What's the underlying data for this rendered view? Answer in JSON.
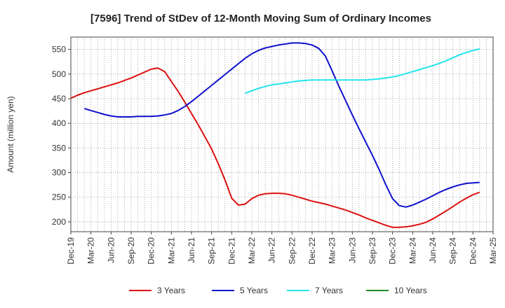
{
  "chart_data": {
    "type": "line",
    "title": "[7596]  Trend of StDev of 12-Month Moving Sum of Ordinary Incomes",
    "xlabel": "",
    "ylabel": "Amount (million yen)",
    "ylim": [
      180,
      575
    ],
    "yticks": [
      200,
      250,
      300,
      350,
      400,
      450,
      500,
      550
    ],
    "x_tick_labels": [
      "Dec-19",
      "Mar-20",
      "Jun-20",
      "Sep-20",
      "Dec-20",
      "Mar-21",
      "Jun-21",
      "Sep-21",
      "Dec-21",
      "Mar-22",
      "Jun-22",
      "Sep-22",
      "Dec-22",
      "Mar-23",
      "Jun-23",
      "Sep-23",
      "Dec-23",
      "Mar-24",
      "Jun-24",
      "Sep-24",
      "Dec-24",
      "Mar-25"
    ],
    "grid": true,
    "legend_position": "bottom",
    "series": [
      {
        "name": "3 Years",
        "color": "#dd1111",
        "points": [
          [
            "2019-12",
            451
          ],
          [
            "2020-01",
            457
          ],
          [
            "2020-02",
            462
          ],
          [
            "2020-03",
            466
          ],
          [
            "2020-04",
            470
          ],
          [
            "2020-05",
            474
          ],
          [
            "2020-06",
            478
          ],
          [
            "2020-07",
            482
          ],
          [
            "2020-08",
            487
          ],
          [
            "2020-09",
            492
          ],
          [
            "2020-10",
            498
          ],
          [
            "2020-11",
            504
          ],
          [
            "2020-12",
            510
          ],
          [
            "2021-01",
            512
          ],
          [
            "2021-02",
            505
          ],
          [
            "2021-03",
            485
          ],
          [
            "2021-04",
            465
          ],
          [
            "2021-05",
            443
          ],
          [
            "2021-06",
            420
          ],
          [
            "2021-07",
            397
          ],
          [
            "2021-08",
            373
          ],
          [
            "2021-09",
            348
          ],
          [
            "2021-10",
            318
          ],
          [
            "2021-11",
            285
          ],
          [
            "2021-12",
            248
          ],
          [
            "2022-01",
            234
          ],
          [
            "2022-02",
            236
          ],
          [
            "2022-03",
            247
          ],
          [
            "2022-04",
            254
          ],
          [
            "2022-05",
            257
          ],
          [
            "2022-06",
            258
          ],
          [
            "2022-07",
            258
          ],
          [
            "2022-08",
            257
          ],
          [
            "2022-09",
            254
          ],
          [
            "2022-10",
            250
          ],
          [
            "2022-11",
            246
          ],
          [
            "2022-12",
            242
          ],
          [
            "2023-01",
            239
          ],
          [
            "2023-02",
            236
          ],
          [
            "2023-03",
            232
          ],
          [
            "2023-04",
            228
          ],
          [
            "2023-05",
            224
          ],
          [
            "2023-06",
            219
          ],
          [
            "2023-07",
            214
          ],
          [
            "2023-08",
            208
          ],
          [
            "2023-09",
            203
          ],
          [
            "2023-10",
            198
          ],
          [
            "2023-11",
            193
          ],
          [
            "2023-12",
            189
          ],
          [
            "2024-01",
            189
          ],
          [
            "2024-02",
            190
          ],
          [
            "2024-03",
            192
          ],
          [
            "2024-04",
            195
          ],
          [
            "2024-05",
            199
          ],
          [
            "2024-06",
            206
          ],
          [
            "2024-07",
            214
          ],
          [
            "2024-08",
            222
          ],
          [
            "2024-09",
            231
          ],
          [
            "2024-10",
            240
          ],
          [
            "2024-11",
            248
          ],
          [
            "2024-12",
            255
          ],
          [
            "2025-01",
            260
          ]
        ]
      },
      {
        "name": "5 Years",
        "color": "#1111cc",
        "points": [
          [
            "2020-02",
            430
          ],
          [
            "2020-03",
            426
          ],
          [
            "2020-04",
            422
          ],
          [
            "2020-05",
            418
          ],
          [
            "2020-06",
            415
          ],
          [
            "2020-07",
            413
          ],
          [
            "2020-08",
            413
          ],
          [
            "2020-09",
            413
          ],
          [
            "2020-10",
            414
          ],
          [
            "2020-11",
            414
          ],
          [
            "2020-12",
            414
          ],
          [
            "2021-01",
            415
          ],
          [
            "2021-02",
            417
          ],
          [
            "2021-03",
            420
          ],
          [
            "2021-04",
            426
          ],
          [
            "2021-05",
            434
          ],
          [
            "2021-06",
            444
          ],
          [
            "2021-07",
            455
          ],
          [
            "2021-08",
            466
          ],
          [
            "2021-09",
            477
          ],
          [
            "2021-10",
            488
          ],
          [
            "2021-11",
            499
          ],
          [
            "2021-12",
            510
          ],
          [
            "2022-01",
            521
          ],
          [
            "2022-02",
            532
          ],
          [
            "2022-03",
            541
          ],
          [
            "2022-04",
            548
          ],
          [
            "2022-05",
            553
          ],
          [
            "2022-06",
            556
          ],
          [
            "2022-07",
            559
          ],
          [
            "2022-08",
            561
          ],
          [
            "2022-09",
            563
          ],
          [
            "2022-10",
            563
          ],
          [
            "2022-11",
            562
          ],
          [
            "2022-12",
            559
          ],
          [
            "2023-01",
            552
          ],
          [
            "2023-02",
            536
          ],
          [
            "2023-03",
            506
          ],
          [
            "2023-04",
            475
          ],
          [
            "2023-05",
            446
          ],
          [
            "2023-06",
            417
          ],
          [
            "2023-07",
            389
          ],
          [
            "2023-08",
            362
          ],
          [
            "2023-09",
            335
          ],
          [
            "2023-10",
            306
          ],
          [
            "2023-11",
            275
          ],
          [
            "2023-12",
            247
          ],
          [
            "2024-01",
            233
          ],
          [
            "2024-02",
            230
          ],
          [
            "2024-03",
            234
          ],
          [
            "2024-04",
            240
          ],
          [
            "2024-05",
            246
          ],
          [
            "2024-06",
            253
          ],
          [
            "2024-07",
            260
          ],
          [
            "2024-08",
            266
          ],
          [
            "2024-09",
            271
          ],
          [
            "2024-10",
            275
          ],
          [
            "2024-11",
            278
          ],
          [
            "2024-12",
            279
          ],
          [
            "2025-01",
            280
          ]
        ]
      },
      {
        "name": "7 Years",
        "color": "#22e5ee",
        "points": [
          [
            "2022-02",
            461
          ],
          [
            "2022-03",
            466
          ],
          [
            "2022-04",
            471
          ],
          [
            "2022-05",
            475
          ],
          [
            "2022-06",
            478
          ],
          [
            "2022-07",
            480
          ],
          [
            "2022-08",
            482
          ],
          [
            "2022-09",
            484
          ],
          [
            "2022-10",
            486
          ],
          [
            "2022-11",
            487
          ],
          [
            "2022-12",
            488
          ],
          [
            "2023-01",
            488
          ],
          [
            "2023-02",
            488
          ],
          [
            "2023-03",
            488
          ],
          [
            "2023-04",
            488
          ],
          [
            "2023-05",
            488
          ],
          [
            "2023-06",
            488
          ],
          [
            "2023-07",
            488
          ],
          [
            "2023-08",
            488
          ],
          [
            "2023-09",
            489
          ],
          [
            "2023-10",
            490
          ],
          [
            "2023-11",
            492
          ],
          [
            "2023-12",
            494
          ],
          [
            "2024-01",
            497
          ],
          [
            "2024-02",
            501
          ],
          [
            "2024-03",
            505
          ],
          [
            "2024-04",
            509
          ],
          [
            "2024-05",
            513
          ],
          [
            "2024-06",
            517
          ],
          [
            "2024-07",
            522
          ],
          [
            "2024-08",
            527
          ],
          [
            "2024-09",
            533
          ],
          [
            "2024-10",
            539
          ],
          [
            "2024-11",
            544
          ],
          [
            "2024-12",
            548
          ],
          [
            "2025-01",
            551
          ]
        ]
      },
      {
        "name": "10 Years",
        "color": "#228822",
        "points": []
      }
    ]
  }
}
